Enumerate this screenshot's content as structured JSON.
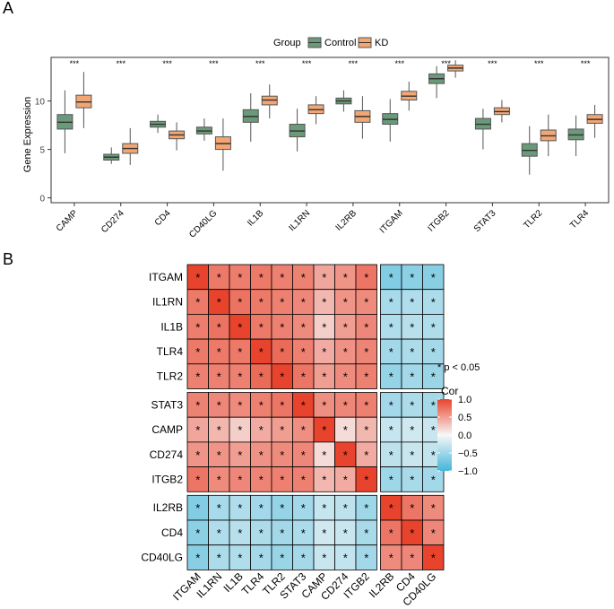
{
  "chart_data": [
    {
      "type": "boxplot",
      "panel_label": "A",
      "title": "",
      "xlabel": "",
      "ylabel": "Gene Expression",
      "ylim": [
        -0.5,
        14.5
      ],
      "yticks": [
        "0",
        "5",
        "10"
      ],
      "legend": {
        "title": "Group",
        "position": "top",
        "entries": [
          "Control",
          "KD"
        ]
      },
      "colors": {
        "Control": "#6b9a7a",
        "KD": "#f2a674",
        "whisker": "#555555",
        "panel_border": "#333333"
      },
      "categories": [
        "CAMP",
        "CD274",
        "CD4",
        "CD40LG",
        "IL1B",
        "IL1RN",
        "IL2RB",
        "ITGAM",
        "ITGB2",
        "STAT3",
        "TLR2",
        "TLR4"
      ],
      "significance": [
        "***",
        "***",
        "***",
        "***",
        "***",
        "***",
        "***",
        "***",
        "***",
        "***",
        "***",
        "***"
      ],
      "series": [
        {
          "name": "Control",
          "stats": [
            {
              "min": 4.6,
              "q1": 7.1,
              "median": 7.8,
              "q3": 8.6,
              "max": 11.1
            },
            {
              "min": 3.5,
              "q1": 3.9,
              "median": 4.2,
              "q3": 4.5,
              "max": 5.2
            },
            {
              "min": 6.7,
              "q1": 7.3,
              "median": 7.6,
              "q3": 7.9,
              "max": 8.6
            },
            {
              "min": 5.9,
              "q1": 6.6,
              "median": 6.9,
              "q3": 7.3,
              "max": 8.2
            },
            {
              "min": 5.8,
              "q1": 7.8,
              "median": 8.4,
              "q3": 9.1,
              "max": 10.8
            },
            {
              "min": 4.8,
              "q1": 6.3,
              "median": 6.9,
              "q3": 7.6,
              "max": 9.2
            },
            {
              "min": 8.9,
              "q1": 9.7,
              "median": 10.0,
              "q3": 10.3,
              "max": 11.1
            },
            {
              "min": 5.8,
              "q1": 7.6,
              "median": 8.1,
              "q3": 8.7,
              "max": 10.2
            },
            {
              "min": 10.3,
              "q1": 11.8,
              "median": 12.3,
              "q3": 12.8,
              "max": 13.6
            },
            {
              "min": 5.0,
              "q1": 7.1,
              "median": 7.6,
              "q3": 8.2,
              "max": 9.2
            },
            {
              "min": 2.4,
              "q1": 4.3,
              "median": 4.9,
              "q3": 5.6,
              "max": 7.4
            },
            {
              "min": 4.3,
              "q1": 6.0,
              "median": 6.5,
              "q3": 7.1,
              "max": 8.5
            }
          ]
        },
        {
          "name": "KD",
          "stats": [
            {
              "min": 7.2,
              "q1": 9.3,
              "median": 9.9,
              "q3": 10.6,
              "max": 13.0
            },
            {
              "min": 3.4,
              "q1": 4.6,
              "median": 5.1,
              "q3": 5.6,
              "max": 7.2
            },
            {
              "min": 4.9,
              "q1": 6.1,
              "median": 6.5,
              "q3": 6.9,
              "max": 7.8
            },
            {
              "min": 2.8,
              "q1": 5.0,
              "median": 5.6,
              "q3": 6.3,
              "max": 8.2
            },
            {
              "min": 8.2,
              "q1": 9.6,
              "median": 10.1,
              "q3": 10.5,
              "max": 11.7
            },
            {
              "min": 7.6,
              "q1": 8.7,
              "median": 9.1,
              "q3": 9.6,
              "max": 10.5
            },
            {
              "min": 6.1,
              "q1": 7.8,
              "median": 8.4,
              "q3": 9.0,
              "max": 10.5
            },
            {
              "min": 9.0,
              "q1": 10.1,
              "median": 10.5,
              "q3": 11.0,
              "max": 12.0
            },
            {
              "min": 12.4,
              "q1": 13.1,
              "median": 13.4,
              "q3": 13.7,
              "max": 14.2
            },
            {
              "min": 7.8,
              "q1": 8.6,
              "median": 8.9,
              "q3": 9.3,
              "max": 10.1
            },
            {
              "min": 4.3,
              "q1": 5.9,
              "median": 6.4,
              "q3": 7.0,
              "max": 8.6
            },
            {
              "min": 6.2,
              "q1": 7.7,
              "median": 8.1,
              "q3": 8.6,
              "max": 9.6
            }
          ]
        }
      ]
    },
    {
      "type": "heatmap",
      "panel_label": "B",
      "title": "",
      "rows": [
        "ITGAM",
        "IL1RN",
        "IL1B",
        "TLR4",
        "TLR2",
        "STAT3",
        "CAMP",
        "CD274",
        "ITGB2",
        "IL2RB",
        "CD4",
        "CD40LG"
      ],
      "cols": [
        "ITGAM",
        "IL1RN",
        "IL1B",
        "TLR4",
        "TLR2",
        "STAT3",
        "CAMP",
        "CD274",
        "ITGB2",
        "IL2RB",
        "CD4",
        "CD40LG"
      ],
      "values": [
        [
          1.0,
          0.7,
          0.68,
          0.7,
          0.66,
          0.65,
          0.45,
          0.55,
          0.72,
          -0.65,
          -0.6,
          -0.62
        ],
        [
          0.7,
          1.0,
          0.74,
          0.7,
          0.66,
          0.62,
          0.35,
          0.55,
          0.6,
          -0.45,
          -0.4,
          -0.42
        ],
        [
          0.68,
          0.74,
          1.0,
          0.7,
          0.66,
          0.6,
          0.22,
          0.5,
          0.62,
          -0.4,
          -0.36,
          -0.4
        ],
        [
          0.7,
          0.7,
          0.7,
          1.0,
          0.78,
          0.66,
          0.42,
          0.56,
          0.64,
          -0.48,
          -0.42,
          -0.46
        ],
        [
          0.66,
          0.66,
          0.66,
          0.78,
          1.0,
          0.72,
          0.5,
          0.6,
          0.66,
          -0.55,
          -0.48,
          -0.52
        ],
        [
          0.65,
          0.62,
          0.6,
          0.66,
          0.72,
          1.0,
          0.58,
          0.62,
          0.66,
          -0.48,
          -0.42,
          -0.46
        ],
        [
          0.45,
          0.35,
          0.22,
          0.42,
          0.5,
          0.58,
          1.0,
          0.15,
          0.35,
          -0.28,
          -0.22,
          -0.26
        ],
        [
          0.55,
          0.55,
          0.5,
          0.56,
          0.6,
          0.62,
          0.15,
          1.0,
          0.42,
          -0.32,
          -0.26,
          -0.3
        ],
        [
          0.72,
          0.6,
          0.62,
          0.64,
          0.66,
          0.66,
          0.35,
          0.42,
          1.0,
          -0.5,
          -0.44,
          -0.48
        ],
        [
          -0.65,
          -0.45,
          -0.4,
          -0.48,
          -0.55,
          -0.48,
          -0.28,
          -0.32,
          -0.5,
          1.0,
          0.72,
          0.6
        ],
        [
          -0.6,
          -0.4,
          -0.36,
          -0.42,
          -0.48,
          -0.42,
          -0.22,
          -0.26,
          -0.44,
          0.72,
          1.0,
          0.62
        ],
        [
          -0.62,
          -0.42,
          -0.4,
          -0.46,
          -0.52,
          -0.46,
          -0.26,
          -0.3,
          -0.48,
          0.6,
          0.62,
          1.0
        ]
      ],
      "significance_mark": "*",
      "all_significant": true,
      "cluster_row_splits": [
        5,
        9
      ],
      "cluster_col_splits": [
        9
      ],
      "annotation": "* p < 0.05",
      "legend": {
        "title": "Cor",
        "range": [
          -1.0,
          1.0
        ],
        "ticks": [
          {
            "value": 1.0,
            "label": "1.0"
          },
          {
            "value": 0.5,
            "label": "0.5"
          },
          {
            "value": 0.0,
            "label": "0.0"
          },
          {
            "value": -0.5,
            "label": "−0.5"
          },
          {
            "value": -1.0,
            "label": "−1.0"
          }
        ]
      },
      "colors": {
        "low": "#45b6d9",
        "mid": "#f7f7f7",
        "high": "#e8432c",
        "grid": "#000000",
        "split": "#ffffff"
      }
    }
  ]
}
